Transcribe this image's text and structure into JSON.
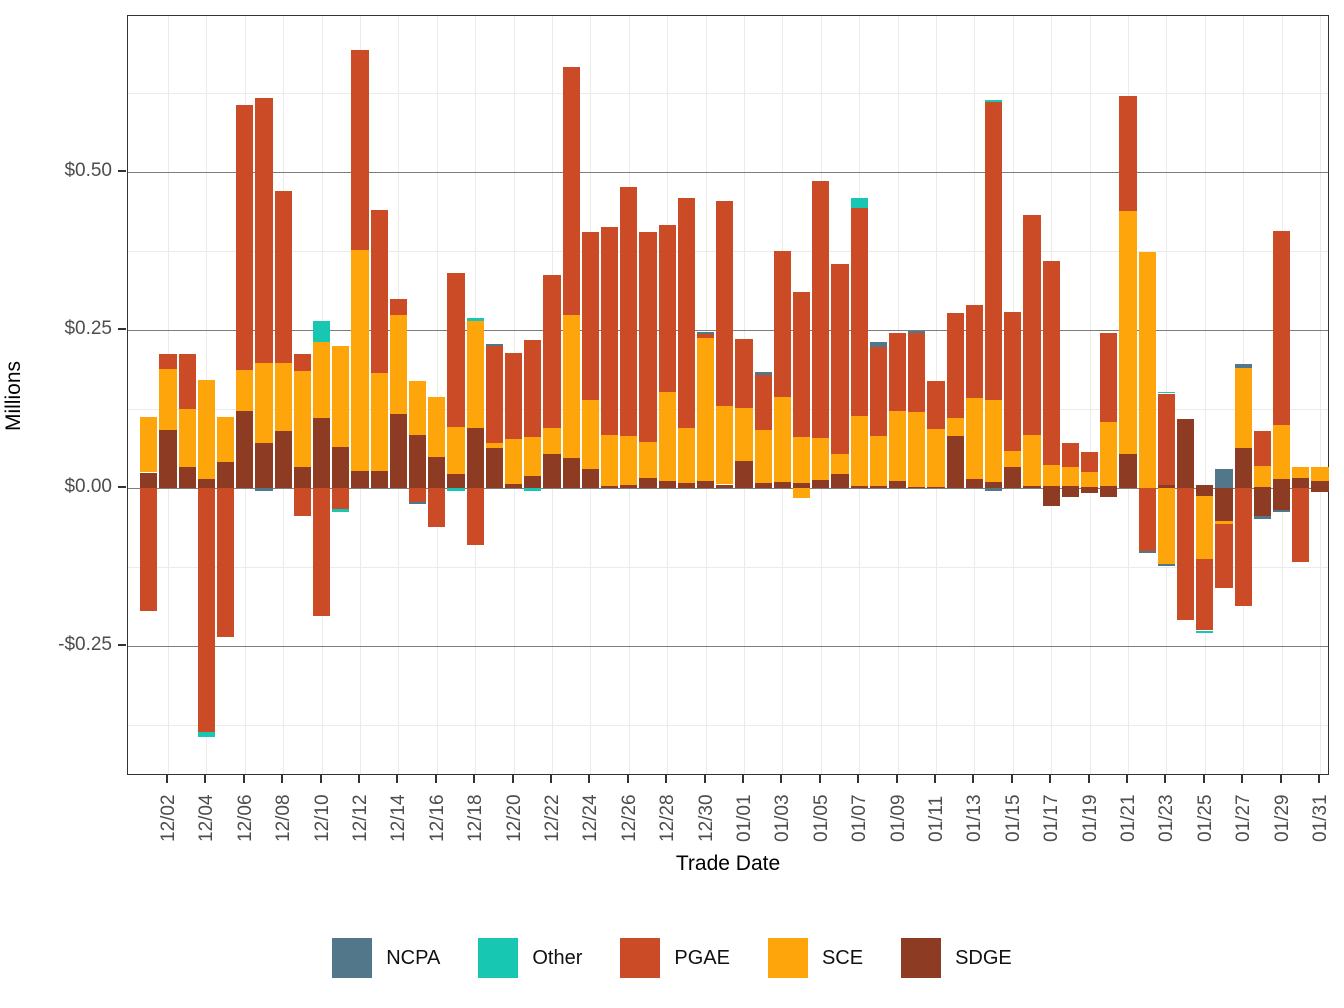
{
  "chart_data": {
    "type": "bar",
    "stacked": true,
    "title": "",
    "xlabel": "Trade Date",
    "ylabel": "Millions",
    "ylim": [
      -0.455,
      0.747
    ],
    "grid": "on",
    "legend_position": "bottom",
    "y_ticks": [
      {
        "label": "$0.50",
        "value": 0.5
      },
      {
        "label": "$0.25",
        "value": 0.25
      },
      {
        "label": "$0.00",
        "value": 0.0
      },
      {
        "label": "-$0.25",
        "value": -0.25
      }
    ],
    "y_minor_ticks": [
      0.625,
      0.375,
      0.125,
      -0.125,
      -0.375
    ],
    "series_order": [
      "sdge",
      "sce",
      "pgae",
      "other",
      "ncpa"
    ],
    "legend": [
      {
        "key": "ncpa",
        "label": "NCPA",
        "color": "#52768A"
      },
      {
        "key": "other",
        "label": "Other",
        "color": "#17C7B1"
      },
      {
        "key": "pgae",
        "label": "PGAE",
        "color": "#CB4B26"
      },
      {
        "key": "sce",
        "label": "SCE",
        "color": "#FDA50A"
      },
      {
        "key": "sdge",
        "label": "SDGE",
        "color": "#8E3B24"
      }
    ],
    "colors": {
      "ncpa": "#52768A",
      "other": "#17C7B1",
      "pgae": "#CB4B26",
      "sce": "#FDA50A",
      "sdge": "#8E3B24",
      "grid_major": "#7d7d7d",
      "grid_minor": "#ebebeb",
      "axis_text": "#4d4d4d",
      "panel_border": "#333333"
    },
    "x_label_every": 2,
    "bars": [
      {
        "date": "12/01",
        "pos": {
          "sdge": 0.025,
          "sce": 0.088
        },
        "neg": {
          "pgae": 0.194
        }
      },
      {
        "date": "12/02",
        "pos": {
          "sdge": 0.093,
          "sce": 0.095,
          "pgae": 0.025
        },
        "neg": {}
      },
      {
        "date": "12/03",
        "pos": {
          "sdge": 0.034,
          "sce": 0.091,
          "pgae": 0.088
        },
        "neg": {}
      },
      {
        "date": "12/04",
        "pos": {
          "sdge": 0.015,
          "sce": 0.157
        },
        "neg": {
          "pgae": 0.385,
          "other": 0.008
        }
      },
      {
        "date": "12/05",
        "pos": {
          "sdge": 0.042,
          "sce": 0.071
        },
        "neg": {
          "pgae": 0.235
        }
      },
      {
        "date": "12/06",
        "pos": {
          "sdge": 0.122,
          "sce": 0.065,
          "pgae": 0.42
        },
        "neg": {}
      },
      {
        "date": "12/07",
        "pos": {
          "sdge": 0.072,
          "sce": 0.127,
          "pgae": 0.419
        },
        "neg": {
          "ncpa": 0.004
        }
      },
      {
        "date": "12/08",
        "pos": {
          "sdge": 0.091,
          "sce": 0.107,
          "pgae": 0.272
        },
        "neg": {}
      },
      {
        "date": "12/09",
        "pos": {
          "sdge": 0.033,
          "sce": 0.153,
          "pgae": 0.027
        },
        "neg": {
          "pgae": 0.044
        }
      },
      {
        "date": "12/10",
        "pos": {
          "sdge": 0.111,
          "sce": 0.12,
          "other": 0.033
        },
        "neg": {
          "pgae": 0.202
        }
      },
      {
        "date": "12/11",
        "pos": {
          "sdge": 0.065,
          "sce": 0.16
        },
        "neg": {
          "pgae": 0.033,
          "other": 0.004
        }
      },
      {
        "date": "12/12",
        "pos": {
          "sdge": 0.028,
          "sce": 0.349,
          "pgae": 0.316
        },
        "neg": {}
      },
      {
        "date": "12/13",
        "pos": {
          "sdge": 0.027,
          "sce": 0.156,
          "pgae": 0.257
        },
        "neg": {}
      },
      {
        "date": "12/14",
        "pos": {
          "sdge": 0.117,
          "sce": 0.157,
          "pgae": 0.026
        },
        "neg": {}
      },
      {
        "date": "12/15",
        "pos": {
          "sdge": 0.085,
          "sce": 0.084
        },
        "neg": {
          "pgae": 0.021,
          "ncpa": 0.004
        }
      },
      {
        "date": "12/16",
        "pos": {
          "sdge": 0.05,
          "sce": 0.094
        },
        "neg": {
          "pgae": 0.062
        }
      },
      {
        "date": "12/17",
        "pos": {
          "sdge": 0.022,
          "sce": 0.075,
          "pgae": 0.243
        },
        "neg": {
          "other": 0.005
        }
      },
      {
        "date": "12/18",
        "pos": {
          "sdge": 0.096,
          "sce": 0.168,
          "other": 0.005
        },
        "neg": {
          "pgae": 0.09
        }
      },
      {
        "date": "12/19",
        "pos": {
          "sdge": 0.064,
          "sce": 0.007,
          "pgae": 0.154,
          "ncpa": 0.003
        },
        "neg": {}
      },
      {
        "date": "12/20",
        "pos": {
          "sdge": 0.007,
          "sce": 0.071,
          "pgae": 0.136
        },
        "neg": {}
      },
      {
        "date": "12/21",
        "pos": {
          "sdge": 0.02,
          "sce": 0.061,
          "pgae": 0.154
        },
        "neg": {
          "other": 0.004
        }
      },
      {
        "date": "12/22",
        "pos": {
          "sdge": 0.055,
          "sce": 0.04,
          "pgae": 0.243
        },
        "neg": {}
      },
      {
        "date": "12/23",
        "pos": {
          "sdge": 0.048,
          "sce": 0.226,
          "pgae": 0.392
        },
        "neg": {}
      },
      {
        "date": "12/24",
        "pos": {
          "sdge": 0.03,
          "sce": 0.11,
          "pgae": 0.266
        },
        "neg": {}
      },
      {
        "date": "12/25",
        "pos": {
          "sdge": 0.004,
          "sce": 0.08,
          "pgae": 0.33
        },
        "neg": {}
      },
      {
        "date": "12/26",
        "pos": {
          "sdge": 0.005,
          "sce": 0.078,
          "pgae": 0.393
        },
        "neg": {}
      },
      {
        "date": "12/27",
        "pos": {
          "sdge": 0.017,
          "sce": 0.057,
          "pgae": 0.331
        },
        "neg": {}
      },
      {
        "date": "12/28",
        "pos": {
          "sdge": 0.012,
          "sce": 0.14,
          "pgae": 0.264
        },
        "neg": {}
      },
      {
        "date": "12/29",
        "pos": {
          "sdge": 0.008,
          "sce": 0.087,
          "pgae": 0.365
        },
        "neg": {}
      },
      {
        "date": "12/30",
        "pos": {
          "sdge": 0.012,
          "sce": 0.226,
          "pgae": 0.006,
          "ncpa": 0.004
        },
        "neg": {}
      },
      {
        "date": "12/31",
        "pos": {
          "sdge": 0.006,
          "sce": 0.124,
          "pgae": 0.325
        },
        "neg": {}
      },
      {
        "date": "01/01",
        "pos": {
          "sdge": 0.043,
          "sce": 0.084,
          "pgae": 0.11
        },
        "neg": {}
      },
      {
        "date": "01/02",
        "pos": {
          "sdge": 0.009,
          "sce": 0.084,
          "pgae": 0.087,
          "ncpa": 0.004
        },
        "neg": {}
      },
      {
        "date": "01/03",
        "pos": {
          "sdge": 0.01,
          "sce": 0.135,
          "pgae": 0.231
        },
        "neg": {}
      },
      {
        "date": "01/04",
        "pos": {
          "sdge": 0.009,
          "sce": 0.072,
          "pgae": 0.229
        },
        "neg": {
          "sce": 0.015
        }
      },
      {
        "date": "01/05",
        "pos": {
          "sdge": 0.013,
          "sce": 0.066,
          "pgae": 0.407
        },
        "neg": {}
      },
      {
        "date": "01/06",
        "pos": {
          "sdge": 0.022,
          "sce": 0.032,
          "pgae": 0.301
        },
        "neg": {}
      },
      {
        "date": "01/07",
        "pos": {
          "sdge": 0.004,
          "sce": 0.11,
          "pgae": 0.33,
          "other": 0.016
        },
        "neg": {}
      },
      {
        "date": "01/08",
        "pos": {
          "sdge": 0.004,
          "sce": 0.079,
          "pgae": 0.14,
          "ncpa": 0.009
        },
        "neg": {}
      },
      {
        "date": "01/09",
        "pos": {
          "sdge": 0.012,
          "sce": 0.111,
          "pgae": 0.122
        },
        "neg": {}
      },
      {
        "date": "01/10",
        "pos": {
          "sdge": 0.002,
          "sce": 0.118,
          "pgae": 0.125,
          "ncpa": 0.004
        },
        "neg": {}
      },
      {
        "date": "01/11",
        "pos": {
          "sdge": 0.002,
          "sce": 0.092,
          "pgae": 0.076
        },
        "neg": {}
      },
      {
        "date": "01/12",
        "pos": {
          "sdge": 0.083,
          "sce": 0.029,
          "pgae": 0.166
        },
        "neg": {}
      },
      {
        "date": "01/13",
        "pos": {
          "sdge": 0.014,
          "sce": 0.129,
          "pgae": 0.147
        },
        "neg": {}
      },
      {
        "date": "01/14",
        "pos": {
          "sdge": 0.01,
          "sce": 0.13,
          "pgae": 0.472,
          "other": 0.002
        },
        "neg": {
          "ncpa": 0.004
        }
      },
      {
        "date": "01/15",
        "pos": {
          "sdge": 0.033,
          "sce": 0.026,
          "pgae": 0.22
        },
        "neg": {}
      },
      {
        "date": "01/16",
        "pos": {
          "sdge": 0.004,
          "sce": 0.08,
          "pgae": 0.349
        },
        "neg": {}
      },
      {
        "date": "01/17",
        "pos": {
          "sdge": 0.004,
          "sce": 0.033,
          "pgae": 0.322
        },
        "neg": {
          "sdge": 0.028
        }
      },
      {
        "date": "01/18",
        "pos": {
          "sdge": 0.004,
          "sce": 0.03,
          "pgae": 0.038
        },
        "neg": {
          "sdge": 0.014
        }
      },
      {
        "date": "01/19",
        "pos": {
          "sdge": 0.002,
          "sce": 0.024,
          "pgae": 0.032
        },
        "neg": {
          "sdge": 0.008
        }
      },
      {
        "date": "01/20",
        "pos": {
          "sdge": 0.003,
          "sce": 0.102,
          "pgae": 0.14
        },
        "neg": {
          "sdge": 0.013
        }
      },
      {
        "date": "01/21",
        "pos": {
          "sdge": 0.055,
          "sce": 0.383,
          "pgae": 0.183
        },
        "neg": {}
      },
      {
        "date": "01/22",
        "pos": {
          "sdge": 0.001,
          "sce": 0.373
        },
        "neg": {
          "pgae": 0.099,
          "ncpa": 0.003
        }
      },
      {
        "date": "01/23",
        "pos": {
          "sdge": 0.005,
          "pgae": 0.145,
          "other": 0.003
        },
        "neg": {
          "sce": 0.12,
          "ncpa": 0.003
        }
      },
      {
        "date": "01/24",
        "pos": {
          "sdge": 0.109
        },
        "neg": {
          "pgae": 0.209
        }
      },
      {
        "date": "01/25",
        "pos": {
          "sdge": 0.006
        },
        "neg": {
          "sdge": 0.012,
          "sce": 0.1,
          "pgae": 0.113,
          "other": 0.004
        }
      },
      {
        "date": "01/26",
        "pos": {
          "ncpa": 0.03
        },
        "neg": {
          "sdge": 0.052,
          "sce": 0.004,
          "pgae": 0.102
        }
      },
      {
        "date": "01/27",
        "pos": {
          "sdge": 0.063,
          "sce": 0.127,
          "ncpa": 0.006
        },
        "neg": {
          "pgae": 0.187
        }
      },
      {
        "date": "01/28",
        "pos": {
          "sdge": 0.002,
          "sce": 0.034,
          "pgae": 0.054
        },
        "neg": {
          "sdge": 0.044,
          "ncpa": 0.004
        }
      },
      {
        "date": "01/29",
        "pos": {
          "sdge": 0.014,
          "sce": 0.086,
          "pgae": 0.307
        },
        "neg": {
          "sdge": 0.035,
          "ncpa": 0.003
        }
      },
      {
        "date": "01/30",
        "pos": {
          "sdge": 0.017,
          "sce": 0.017
        },
        "neg": {
          "pgae": 0.116
        }
      },
      {
        "date": "01/31",
        "pos": {
          "sdge": 0.012,
          "sce": 0.022
        },
        "neg": {
          "sdge": 0.006
        }
      }
    ]
  }
}
